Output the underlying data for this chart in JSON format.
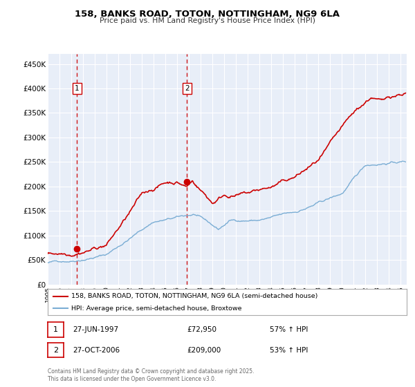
{
  "title": "158, BANKS ROAD, TOTON, NOTTINGHAM, NG9 6LA",
  "subtitle": "Price paid vs. HM Land Registry's House Price Index (HPI)",
  "legend_line1": "158, BANKS ROAD, TOTON, NOTTINGHAM, NG9 6LA (semi-detached house)",
  "legend_line2": "HPI: Average price, semi-detached house, Broxtowe",
  "transaction1_date": "27-JUN-1997",
  "transaction1_price": "£72,950",
  "transaction1_hpi": "57% ↑ HPI",
  "transaction2_date": "27-OCT-2006",
  "transaction2_price": "£209,000",
  "transaction2_hpi": "53% ↑ HPI",
  "footer": "Contains HM Land Registry data © Crown copyright and database right 2025.\nThis data is licensed under the Open Government Licence v3.0.",
  "red_color": "#cc0000",
  "blue_color": "#7aadd4",
  "background_color": "#e8eef8",
  "grid_color": "#ffffff",
  "sale1_x": 1997.49,
  "sale1_y": 72950,
  "sale2_x": 2006.82,
  "sale2_y": 209000,
  "xlim": [
    1995,
    2025.5
  ],
  "ylim": [
    0,
    470000
  ],
  "yticks": [
    0,
    50000,
    100000,
    150000,
    200000,
    250000,
    300000,
    350000,
    400000,
    450000
  ],
  "ytick_labels": [
    "£0",
    "£50K",
    "£100K",
    "£150K",
    "£200K",
    "£250K",
    "£300K",
    "£350K",
    "£400K",
    "£450K"
  ]
}
